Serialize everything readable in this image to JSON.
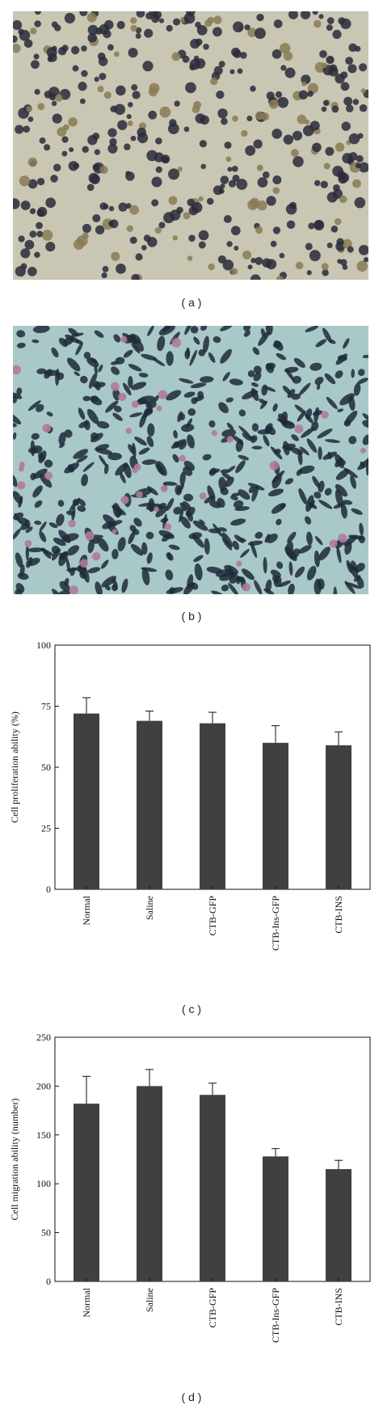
{
  "panels": {
    "a": "( a )",
    "b": "( b )",
    "c": "( c )",
    "d": "( d )"
  },
  "images": {
    "a": {
      "description_icon": "microscopy-round-cells-image",
      "background": "#c9c6b4",
      "cell_color": "#2a2a3a"
    },
    "b": {
      "description_icon": "microscopy-stained-cells-image",
      "background": "#a9c8c8",
      "cell_color": "#1f2a3a",
      "accent": "#b07a9a"
    }
  },
  "chart_data": [
    {
      "type": "bar",
      "categories": [
        "Normal",
        "Saline",
        "CTB-GFP",
        "CTB-Ins-GFP",
        "CTB-INS"
      ],
      "values": [
        72,
        69,
        68,
        60,
        59
      ],
      "errors": [
        6.5,
        4,
        4.5,
        7,
        5.5
      ],
      "ylabel": "Cell proliferation ability (%)",
      "ylim": [
        0,
        100
      ],
      "yticks": [
        0,
        25,
        50,
        75,
        100
      ],
      "bar_color": "#404040"
    },
    {
      "type": "bar",
      "categories": [
        "Normal",
        "Saline",
        "CTB-GFP",
        "CTB-Ins-GFP",
        "CTB-INS"
      ],
      "values": [
        182,
        200,
        191,
        128,
        115
      ],
      "errors": [
        28,
        17,
        12,
        8,
        9
      ],
      "ylabel": "Cell migration ability (number)",
      "ylim": [
        0,
        250
      ],
      "yticks": [
        0,
        50,
        100,
        150,
        200,
        250
      ],
      "bar_color": "#404040"
    }
  ]
}
